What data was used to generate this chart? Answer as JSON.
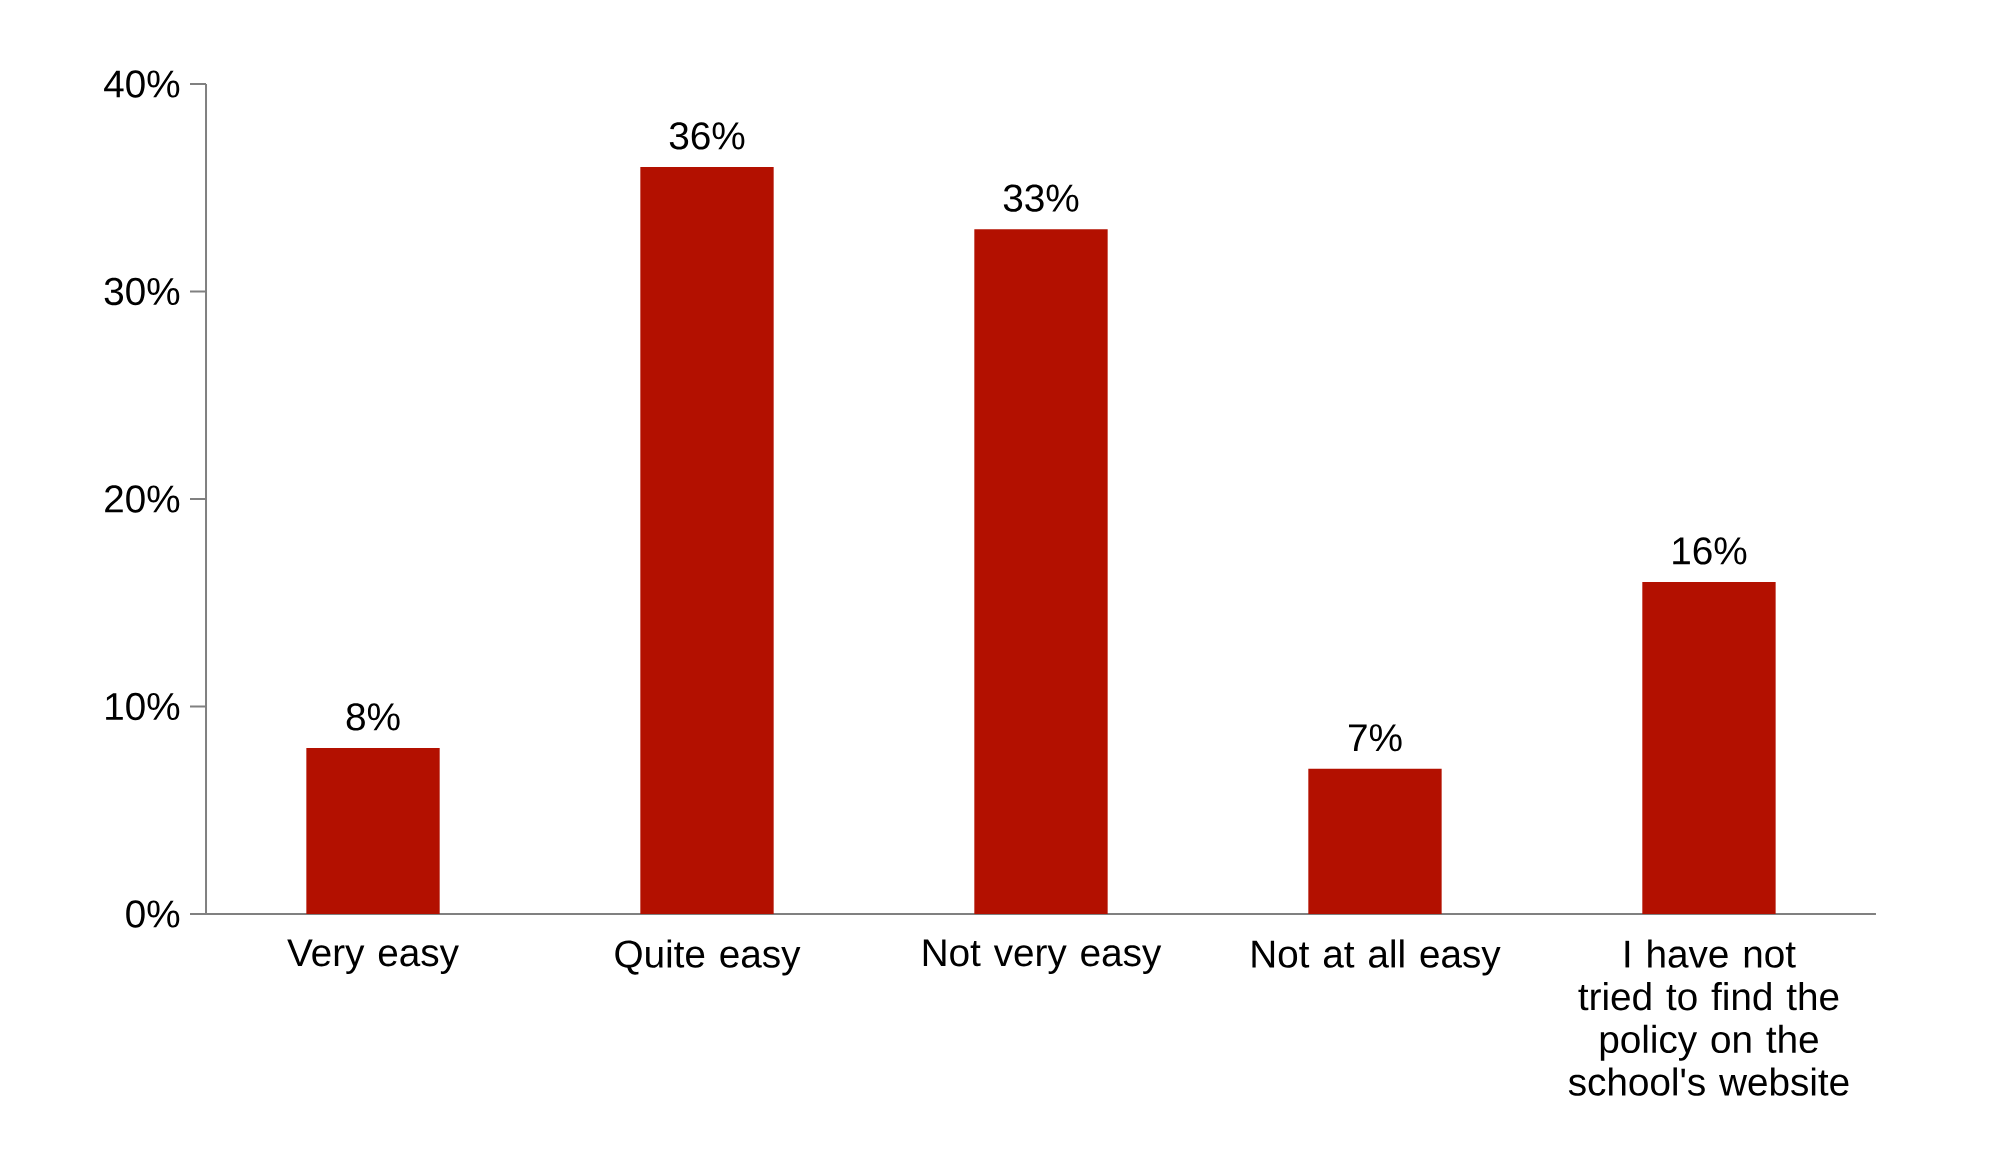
{
  "chart_data": {
    "type": "bar",
    "categories": [
      "Very easy",
      "Quite easy",
      "Not very easy",
      "Not at all easy",
      "I have not tried to find the policy on the school's website"
    ],
    "values": [
      8,
      36,
      33,
      7,
      16
    ],
    "value_labels": [
      "8%",
      "36%",
      "33%",
      "7%",
      "16%"
    ],
    "color": "#b31000",
    "ylim": [
      0,
      40
    ],
    "yticks": [
      {
        "value": 0,
        "label": "0%"
      },
      {
        "value": 10,
        "label": "10%"
      },
      {
        "value": 20,
        "label": "20%"
      },
      {
        "value": 30,
        "label": "30%"
      },
      {
        "value": 40,
        "label": "40%"
      }
    ],
    "grid": false,
    "legend": false
  }
}
